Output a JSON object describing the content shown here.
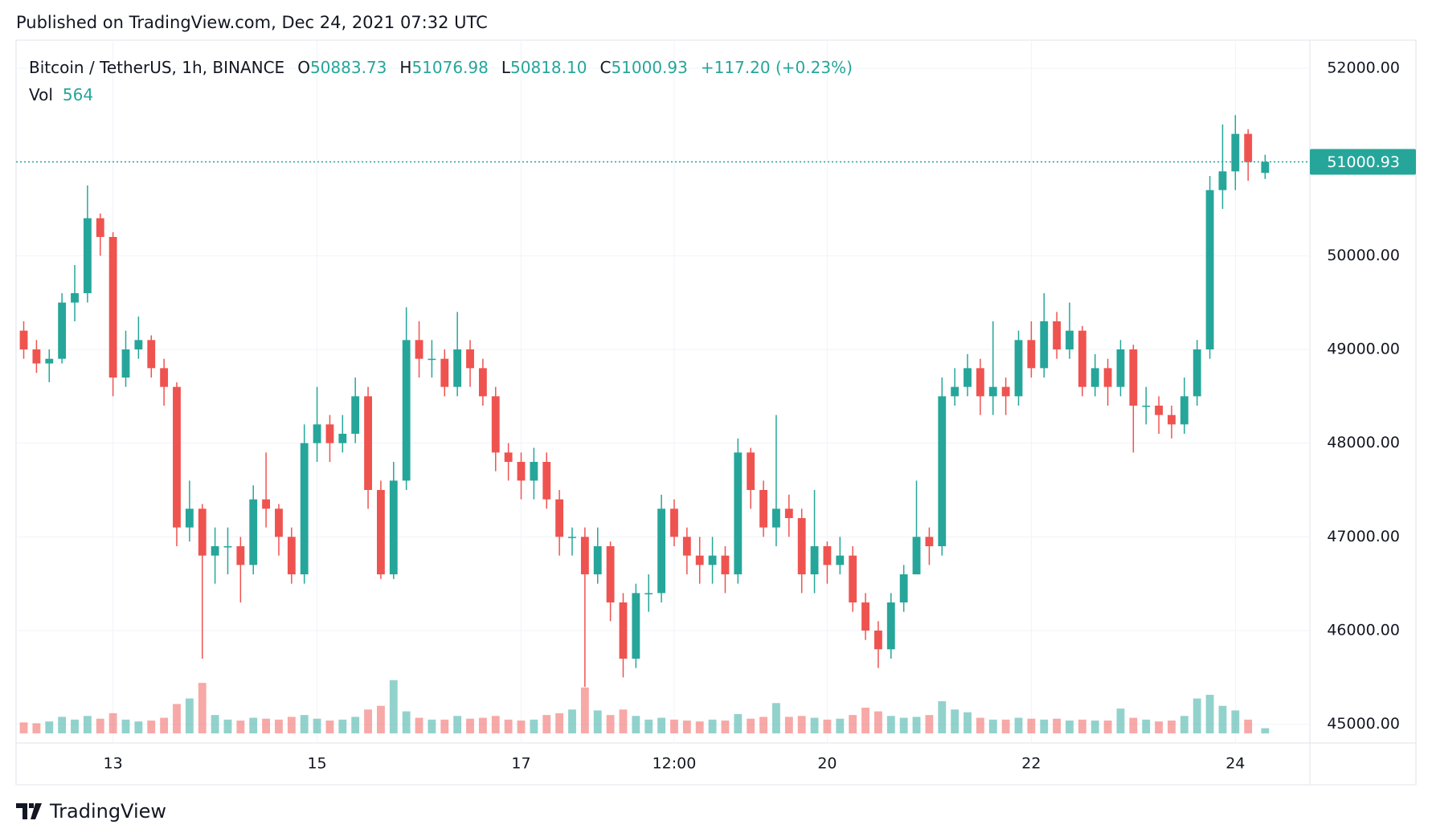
{
  "published": "Published on TradingView.com, Dec 24, 2021 07:32 UTC",
  "brand": "TradingView",
  "chart_data": {
    "type": "candlestick",
    "symbol": "Bitcoin / TetherUS, 1h, BINANCE",
    "ohlc_letters": {
      "open": "O",
      "high": "H",
      "low": "L",
      "close": "C"
    },
    "value_labels": {
      "open": "50883.73",
      "high": "51076.98",
      "low": "50818.10",
      "close": "51000.93"
    },
    "change_label": "+117.20 (+0.23%)",
    "volume_name": "Vol",
    "x": [
      12.125,
      12.25,
      12.375,
      12.5,
      12.625,
      12.75,
      12.875,
      13,
      13.125,
      13.25,
      13.375,
      13.5,
      13.625,
      13.75,
      13.875,
      14,
      14.125,
      14.25,
      14.375,
      14.5,
      14.625,
      14.75,
      14.875,
      15,
      15.125,
      15.25,
      15.375,
      15.5,
      15.625,
      15.75,
      15.875,
      16,
      16.125,
      16.25,
      16.375,
      16.5,
      16.625,
      16.75,
      16.875,
      17,
      17.125,
      17.25,
      17.375,
      17.5,
      17.625,
      17.75,
      17.875,
      18,
      18.125,
      18.25,
      18.375,
      18.5,
      18.625,
      18.75,
      18.875,
      19,
      19.125,
      19.25,
      19.375,
      19.5,
      19.625,
      19.75,
      19.875,
      20,
      20.125,
      20.25,
      20.375,
      20.5,
      20.625,
      20.75,
      20.875,
      21,
      21.125,
      21.25,
      21.375,
      21.5,
      21.625,
      21.75,
      21.875,
      22,
      22.125,
      22.25,
      22.375,
      22.5,
      22.625,
      22.75,
      22.875,
      23,
      23.125,
      23.25,
      23.375,
      23.5,
      23.625,
      23.75,
      23.875,
      24,
      24.125,
      24.2917
    ],
    "open": [
      49200,
      49000,
      48850,
      48900,
      49500,
      49600,
      50400,
      50200,
      48700,
      49000,
      49100,
      48800,
      48600,
      47100,
      47300,
      46800,
      46900,
      46900,
      46700,
      47400,
      47300,
      47000,
      46600,
      48000,
      48200,
      48000,
      48100,
      48500,
      47500,
      46600,
      47600,
      49100,
      48900,
      48900,
      48600,
      49000,
      48800,
      48500,
      47900,
      47800,
      47600,
      47800,
      47400,
      47000,
      47000,
      46600,
      46900,
      46300,
      45700,
      46400,
      46400,
      47300,
      47000,
      46800,
      46700,
      46800,
      46600,
      47900,
      47500,
      47100,
      47300,
      47200,
      46600,
      46900,
      46700,
      46800,
      46300,
      46000,
      45800,
      46300,
      46600,
      47000,
      46900,
      48500,
      48600,
      48800,
      48500,
      48600,
      48500,
      49100,
      48800,
      49300,
      49000,
      49200,
      48600,
      48800,
      48600,
      49000,
      48400,
      48400,
      48300,
      48200,
      48500,
      49000,
      50700,
      50900,
      51300,
      50883.73
    ],
    "high": [
      49300,
      49100,
      49000,
      49600,
      49900,
      50750,
      50450,
      50250,
      49200,
      49350,
      49150,
      48900,
      48650,
      47600,
      47350,
      47100,
      47100,
      47000,
      47550,
      47900,
      47350,
      47100,
      48200,
      48600,
      48300,
      48300,
      48700,
      48600,
      47600,
      47800,
      49450,
      49300,
      49100,
      49000,
      49400,
      49100,
      48900,
      48600,
      48000,
      47900,
      47950,
      47900,
      47500,
      47100,
      47100,
      47100,
      46950,
      46400,
      46500,
      46600,
      47450,
      47400,
      47100,
      47000,
      47000,
      46900,
      48050,
      47950,
      47600,
      48300,
      47450,
      47300,
      47500,
      46950,
      47000,
      46900,
      46400,
      46100,
      46400,
      46700,
      47600,
      47100,
      48700,
      48800,
      48950,
      48900,
      49300,
      48700,
      49200,
      49300,
      49600,
      49400,
      49500,
      49250,
      48950,
      48900,
      49100,
      49050,
      48600,
      48500,
      48400,
      48700,
      49100,
      50850,
      51400,
      51500,
      51350,
      51076.98
    ],
    "low": [
      48900,
      48750,
      48650,
      48850,
      49300,
      49500,
      50000,
      48500,
      48600,
      48900,
      48700,
      48400,
      46900,
      46950,
      45700,
      46500,
      46600,
      46300,
      46600,
      47100,
      46800,
      46500,
      46500,
      47800,
      47800,
      47900,
      48000,
      47300,
      46550,
      46550,
      47500,
      48700,
      48700,
      48500,
      48500,
      48600,
      48400,
      47700,
      47600,
      47400,
      47400,
      47300,
      46800,
      46800,
      45400,
      46500,
      46100,
      45500,
      45600,
      46200,
      46300,
      46900,
      46600,
      46500,
      46500,
      46400,
      46500,
      47300,
      47000,
      46900,
      47000,
      46400,
      46400,
      46500,
      46600,
      46200,
      45900,
      45600,
      45700,
      46200,
      46600,
      46700,
      46800,
      48400,
      48500,
      48300,
      48300,
      48300,
      48400,
      48700,
      48700,
      48900,
      48900,
      48500,
      48500,
      48400,
      48500,
      47900,
      48200,
      48100,
      48050,
      48100,
      48400,
      48900,
      50500,
      50700,
      50800,
      50818.1
    ],
    "close": [
      49000,
      48850,
      48900,
      49500,
      49600,
      50400,
      50200,
      48700,
      49000,
      49100,
      48800,
      48600,
      47100,
      47300,
      46800,
      46900,
      46900,
      46700,
      47400,
      47300,
      47000,
      46600,
      48000,
      48200,
      48000,
      48100,
      48500,
      47500,
      46600,
      47600,
      49100,
      48900,
      48900,
      48600,
      49000,
      48800,
      48500,
      47900,
      47800,
      47600,
      47800,
      47400,
      47000,
      47000,
      46600,
      46900,
      46300,
      45700,
      46400,
      46400,
      47300,
      47000,
      46800,
      46700,
      46800,
      46600,
      47900,
      47500,
      47100,
      47300,
      47200,
      46600,
      46900,
      46700,
      46800,
      46300,
      46000,
      45800,
      46300,
      46600,
      47000,
      46900,
      48500,
      48600,
      48800,
      48500,
      48600,
      48500,
      49100,
      48800,
      49300,
      49000,
      49200,
      48600,
      48800,
      48600,
      49000,
      48400,
      48400,
      48300,
      48200,
      48500,
      49000,
      50700,
      50900,
      51300,
      51000,
      51000.93
    ],
    "volume": [
      1200,
      1100,
      1300,
      1800,
      1500,
      1900,
      1600,
      2200,
      1500,
      1300,
      1400,
      1700,
      3200,
      3800,
      5500,
      2000,
      1500,
      1400,
      1700,
      1600,
      1500,
      1800,
      2000,
      1600,
      1400,
      1500,
      1800,
      2600,
      3000,
      5800,
      2400,
      1700,
      1500,
      1500,
      1900,
      1600,
      1700,
      1900,
      1500,
      1400,
      1500,
      2000,
      2200,
      2600,
      5000,
      2500,
      2000,
      2600,
      1900,
      1500,
      1700,
      1500,
      1400,
      1300,
      1500,
      1400,
      2100,
      1600,
      1800,
      3300,
      1800,
      1900,
      1700,
      1500,
      1600,
      2000,
      2800,
      2400,
      1900,
      1700,
      1800,
      2000,
      3500,
      2600,
      2300,
      1700,
      1500,
      1500,
      1700,
      1600,
      1500,
      1600,
      1400,
      1500,
      1400,
      1400,
      2700,
      1700,
      1500,
      1300,
      1400,
      1900,
      3800,
      4200,
      3000,
      2500,
      1500,
      564
    ],
    "up_color": "#26a69a",
    "down_color": "#ef5350",
    "xlim": [
      12.05,
      24.73
    ],
    "xticks": [
      13,
      15,
      17,
      {
        "value": 18.5,
        "label": "12:00"
      },
      20,
      22,
      24
    ],
    "ylim": [
      44800,
      52300
    ],
    "yticks": [
      {
        "value": 45000,
        "label": "45000.00"
      },
      {
        "value": 46000,
        "label": "46000.00"
      },
      {
        "value": 47000,
        "label": "47000.00"
      },
      {
        "value": 48000,
        "label": "48000.00"
      },
      {
        "value": 49000,
        "label": "49000.00"
      },
      {
        "value": 50000,
        "label": "50000.00"
      },
      {
        "value": 51000,
        "label": "51000.00"
      },
      {
        "value": 52000,
        "label": "52000.00"
      }
    ],
    "volume_lim": [
      0,
      7000
    ],
    "grid": true,
    "last_price_line": true
  }
}
